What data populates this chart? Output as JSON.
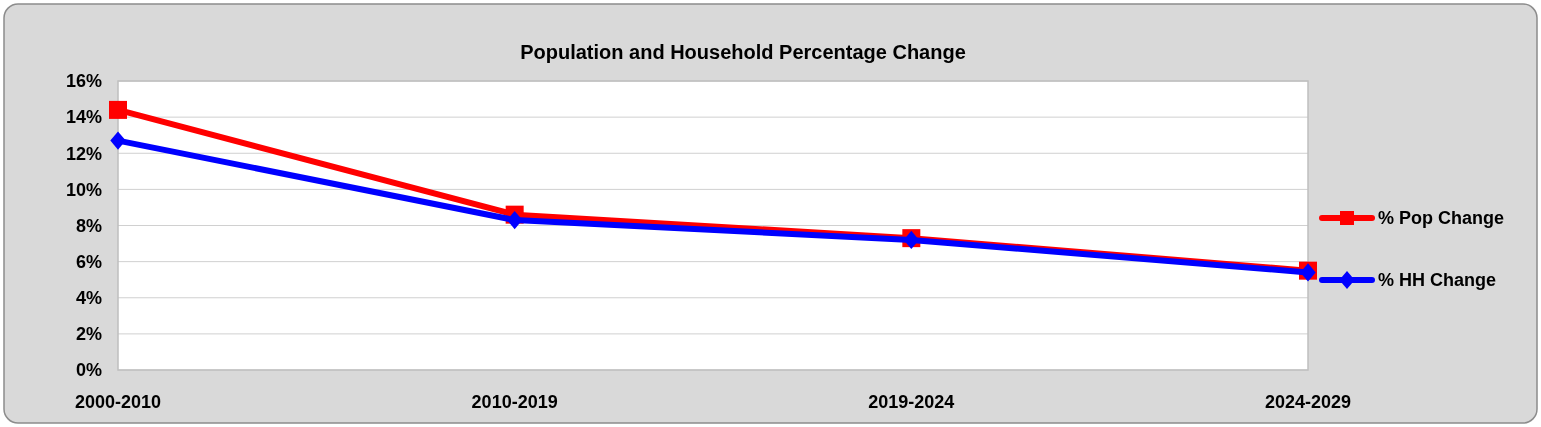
{
  "chart_data": {
    "type": "line",
    "title": "Population and Household Percentage Change",
    "categories": [
      "2000-2010",
      "2010-2019",
      "2019-2024",
      "2024-2029"
    ],
    "series": [
      {
        "name": "% Pop Change",
        "color": "#ff0000",
        "marker": "square",
        "values": [
          14.4,
          8.6,
          7.3,
          5.5
        ]
      },
      {
        "name": "% HH Change",
        "color": "#0000ff",
        "marker": "diamond",
        "values": [
          12.7,
          8.3,
          7.2,
          5.4
        ]
      }
    ],
    "ylim": [
      0,
      16
    ],
    "yticks": [
      {
        "value": 0,
        "label": "0%"
      },
      {
        "value": 2,
        "label": "2%"
      },
      {
        "value": 4,
        "label": "4%"
      },
      {
        "value": 6,
        "label": "6%"
      },
      {
        "value": 8,
        "label": "8%"
      },
      {
        "value": 10,
        "label": "10%"
      },
      {
        "value": 12,
        "label": "12%"
      },
      {
        "value": 14,
        "label": "14%"
      },
      {
        "value": 16,
        "label": "16%"
      }
    ],
    "grid": "y",
    "legend": "right",
    "line_style": "solid"
  }
}
